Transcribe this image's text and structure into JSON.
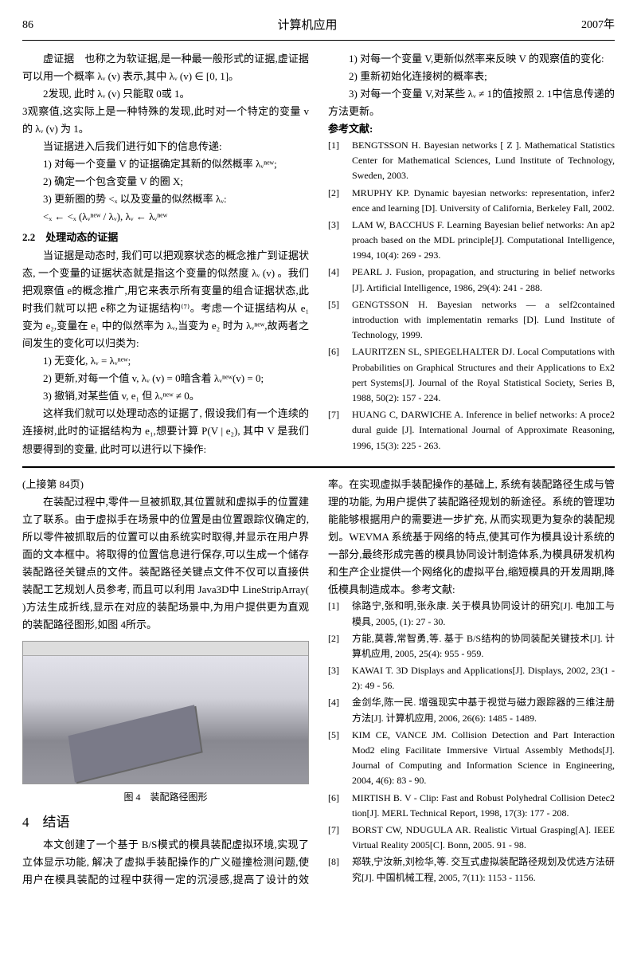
{
  "header": {
    "page": "86",
    "journal": "计算机应用",
    "year": "2007年"
  },
  "top": {
    "p1": "虚证据　也称之为软证据,是一种最一般形式的证据,虚证据可以用一个概率 λᵥ (v) 表示,其中 λᵥ (v) ∈ [0, 1]。",
    "p2": "2发现, 此时 λᵥ (v) 只能取 0或 1。",
    "p3": "3观察值,这实际上是一种特殊的发现,此时对一个特定的变量 v的 λᵥ (v) 为 1。",
    "p4": "当证据进入后我们进行如下的信息传递:",
    "p5": "1) 对每一个变量 V 的证据确定其新的似然概率 λᵥⁿᵉʷ;",
    "p6": "2) 确定一个包含变量 V 的圈 X;",
    "p7": "3) 更新圈的势 <ₓ 以及变量的似然概率 λᵥ:",
    "formula": "<ₓ ← <ₓ (λᵥⁿᵉʷ / λᵥ),  λᵥ ← λᵥⁿᵉʷ",
    "sec22": "2.2　处理动态的证据",
    "p8": "当证据是动态时, 我们可以把观察状态的概念推广到证据状态, 一个变量的证据状态就是指这个变量的似然度 λᵥ (v) 。我们把观察值 e的概念推广,用它来表示所有变量的组合证据状态,此时我们就可以把 e称之为证据结构⁽⁷⁾。考虑一个证据结构从 e₁ 变为 e₂,变量在 e₁ 中的似然率为 λᵥ,当变为 e₂ 时为 λᵥⁿᵉʷ,故两者之间发生的变化可以归类为:",
    "p9": "1) 无变化, λᵥ = λᵥⁿᵉʷ;",
    "p10": "2) 更新,对每一个值 v, λᵥ (v) = 0暗含着 λᵥⁿᵉʷ(v) = 0;",
    "p11": "3) 撤销,对某些值 v, e₁ 但 λᵥⁿᵉʷ ≠ 0。",
    "p12": "这样我们就可以处理动态的证据了, 假设我们有一个连续的连接树,此时的证据结构为 e₁,想要计算 P(V | e₂), 其中 V 是我们想要得到的变量, 此时可以进行以下操作:",
    "p13": "1) 对每一个变量 V,更新似然率来反映 V 的观察值的变化:",
    "p14": "2) 重新初始化连接树的概率表;",
    "p15": "3) 对每一个变量 V,对某些 λᵥ ≠ 1的值按照 2. 1中信息传递的方法更新。",
    "refTitle": "参考文献:",
    "refs": [
      {
        "n": "[1]",
        "t": "BENGTSSON H. Bayesian networks [ Z ]. Mathematical Statistics Center for Mathematical Sciences, Lund Institute of Technology, Sweden, 2003."
      },
      {
        "n": "[2]",
        "t": "MRUPHY KP. Dynamic bayesian networks: representation, infer2 ence and learning [D]. University of California, Berkeley Fall, 2002."
      },
      {
        "n": "[3]",
        "t": "LAM W, BACCHUS F. Learning Bayesian belief networks: An ap2 proach based on the MDL principle[J]. Computational Intelligence, 1994, 10(4): 269 - 293."
      },
      {
        "n": "[4]",
        "t": "PEARL J. Fusion, propagation, and structuring in belief networks [J]. Artificial Intelligence, 1986, 29(4): 241 - 288."
      },
      {
        "n": "[5]",
        "t": "GENGTSSON H. Bayesian networks — a self2contained introduction with implementatin remarks [D]. Lund Institute of Technology, 1999."
      },
      {
        "n": "[6]",
        "t": "LAURITZEN SL, SPIEGELHALTER DJ. Local Computations with Probabilities on Graphical Structures and their Applications to Ex2 pert Systems[J]. Journal of the Royal Statistical Society, Series B, 1988, 50(2): 157 - 224."
      },
      {
        "n": "[7]",
        "t": "HUANG C, DARWICHE A. Inference in belief networks: A proce2 dural guide [J]. International Journal of Approximate Reasoning, 1996, 15(3): 225 - 263."
      }
    ]
  },
  "bottom": {
    "cont": "(上接第 84页)",
    "p1": "在装配过程中,零件一旦被抓取,其位置就和虚拟手的位置建立了联系。由于虚拟手在场景中的位置是由位置跟踪仪确定的,所以零件被抓取后的位置可以由系统实时取得,并显示在用户界面的文本框中。将取得的位置信息进行保存,可以生成一个储存装配路径关键点的文件。装配路径关键点文件不仅可以直接供装配工艺规划人员参考, 而且可以利用 Java3D中 LineStripArray( )方法生成折线,显示在对应的装配场景中,为用户提供更为直观的装配路径图形,如图 4所示。",
    "figCaption": "图 4　装配路径图形",
    "h4": "4　结语",
    "p2": "本文创建了一个基于 B/S模式的模具装配虚拟环境,实现了立体显示功能, 解决了虚拟手装配操作的广义碰撞检测问题,使用户在模具装配的过程中获得一定的沉浸感,提高了设计的效率。在实现虚拟手装配操作的基础上, 系统有装配路径生成与管理的功能, 为用户提供了装配路径规划的新途径。系统的管理功能能够根据用户的需要进一步扩充, 从而实现更为复杂的装配规划。WEVMA 系统基于网络的特点,使其可作为模具设计系统的一部分,最终形成完善的模具协同设计制造体系,为模具研发机构和生产企业提供一个网络化的虚拟平台,缩短模具的开发周期,降低模具制造成本。参考文献:",
    "refs2": [
      {
        "n": "[1]",
        "t": "徐路宁,张和明,张永康. 关于模具协同设计的研究[J]. 电加工与模具, 2005, (1): 27 - 30."
      },
      {
        "n": "[2]",
        "t": "方能,莫蓉,常智勇,等. 基于 B/S结构的协同装配关键技术[J]. 计算机应用, 2005, 25(4): 955 - 959."
      },
      {
        "n": "[3]",
        "t": "KAWAI T. 3D Displays and Applications[J]. Displays, 2002, 23(1 - 2): 49 - 56."
      },
      {
        "n": "[4]",
        "t": "金剑华,陈一民. 增强现实中基于视觉与磁力跟踪器的三维注册方法[J]. 计算机应用, 2006, 26(6): 1485 - 1489."
      },
      {
        "n": "[5]",
        "t": "KIM CE, VANCE JM. Collision Detection and Part Interaction Mod2 eling Facilitate Immersive Virtual Assembly Methods[J]. Journal of Computing and Information Science in Engineering, 2004, 4(6): 83 - 90."
      },
      {
        "n": "[6]",
        "t": "MIRTISH B. V - Clip: Fast and Robust Polyhedral Collision Detec2 tion[J]. MERL Technical Report, 1998, 17(3): 177 - 208."
      },
      {
        "n": "[7]",
        "t": "BORST CW, NDUGULA AR. Realistic Virtual Grasping[A]. IEEE Virtual Reality 2005[C]. Bonn, 2005. 91 - 98."
      },
      {
        "n": "[8]",
        "t": "郑轶,宁汝新,刘检华,等. 交互式虚拟装配路径规划及优选方法研究[J]. 中国机械工程, 2005, 7(11): 1153 - 1156."
      }
    ]
  }
}
